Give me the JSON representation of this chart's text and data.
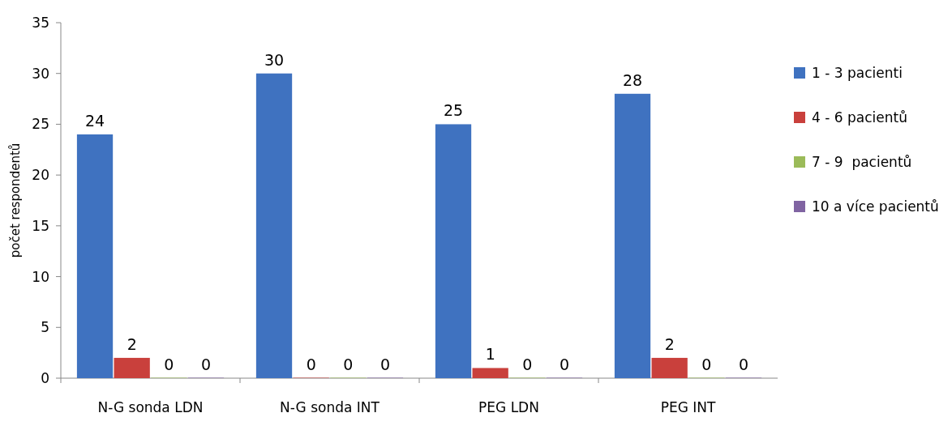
{
  "chart_data": {
    "type": "bar",
    "ylabel": "počet respondentů",
    "categories": [
      "N-G sonda LDN",
      "N-G sonda INT",
      "PEG LDN",
      "PEG INT"
    ],
    "series": [
      {
        "name": "1 - 3 pacienti",
        "color": "#3f72c0",
        "values": [
          24,
          30,
          25,
          28
        ]
      },
      {
        "name": "4 - 6 pacientů",
        "color": "#c9403c",
        "values": [
          2,
          0,
          1,
          2
        ]
      },
      {
        "name": "7 - 9  pacientů",
        "color": "#9bbb59",
        "values": [
          0,
          0,
          0,
          0
        ]
      },
      {
        "name": "10 a více pacientů",
        "color": "#8064a2",
        "values": [
          0,
          0,
          0,
          0
        ]
      }
    ],
    "ylim": [
      0,
      35
    ],
    "yticks": [
      0,
      5,
      10,
      15,
      20,
      25,
      30,
      35
    ],
    "data_labels": true,
    "legend": "right",
    "grid": false
  }
}
